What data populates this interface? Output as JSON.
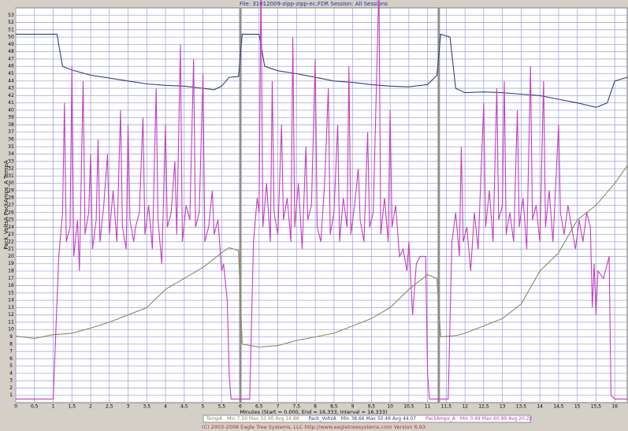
{
  "chart_data": {
    "type": "line",
    "title": "File: 31012009-zipp-zipp-ec.FDR   Session: All Sessions",
    "y_label": "Pack_VoltsA  PackAmps_A  TempA",
    "x_label": "Minutes (Start = 0.000, End = 16.333, Interval = 16.333)",
    "footer": "(C) 2003-2008 Eagle Tree Systems, LLC    http://www.eagletreesystems.com    Version 6.93",
    "xlim": [
      0,
      16.333
    ],
    "ylim": [
      0,
      54
    ],
    "grid": true,
    "xticks": [
      0,
      {
        "value": 0.5,
        "label": "0,5"
      },
      1,
      {
        "value": 1.5,
        "label": "1,5"
      },
      2,
      {
        "value": 2.5,
        "label": "2,5"
      },
      3,
      {
        "value": 3.5,
        "label": "3,5"
      },
      4,
      {
        "value": 4.5,
        "label": "4,5"
      },
      5,
      {
        "value": 5.5,
        "label": "5,5"
      },
      6,
      {
        "value": 6.5,
        "label": "6,5"
      },
      7,
      {
        "value": 7.5,
        "label": "7,5"
      },
      8,
      {
        "value": 8.5,
        "label": "8,5"
      },
      9,
      {
        "value": 9.5,
        "label": "9,5"
      },
      10,
      {
        "value": 10.5,
        "label": "10,5"
      },
      11,
      {
        "value": 11.5,
        "label": "11,5"
      },
      12,
      {
        "value": 12.5,
        "label": "12,5"
      },
      13,
      {
        "value": 13.5,
        "label": "13,5"
      },
      14,
      {
        "value": 14.5,
        "label": "14,5"
      },
      15,
      {
        "value": 15.5,
        "label": "15,5"
      },
      16
    ],
    "yticks": [
      1,
      2,
      3,
      4,
      5,
      6,
      7,
      8,
      9,
      10,
      11,
      12,
      13,
      14,
      15,
      16,
      17,
      18,
      19,
      20,
      21,
      22,
      23,
      24,
      25,
      26,
      27,
      28,
      29,
      30,
      31,
      32,
      33,
      34,
      35,
      36,
      37,
      38,
      39,
      40,
      41,
      42,
      43,
      44,
      45,
      46,
      47,
      48,
      49,
      50,
      51,
      52,
      53
    ],
    "session_breaks": [
      6.0,
      11.3
    ],
    "series": [
      {
        "name": "TempA",
        "stats": "Min 7.50   Max 32.40   Avg 14.88",
        "color": "#8a8a5c",
        "x": [
          0,
          0.5,
          1,
          1.5,
          2,
          2.5,
          3,
          3.5,
          4,
          4.5,
          5,
          5.5,
          5.7,
          5.95,
          6.05,
          6.5,
          7,
          7.5,
          8,
          8.5,
          9,
          9.5,
          10,
          10.5,
          11,
          11.25,
          11.35,
          11.8,
          12,
          12.5,
          13,
          13.5,
          14,
          14.5,
          15,
          15.5,
          16,
          16.333
        ],
        "values": [
          9.1,
          8.8,
          9.3,
          9.5,
          10.2,
          11,
          12,
          13,
          15.5,
          17,
          18.5,
          20.5,
          21.2,
          20.8,
          8,
          7.6,
          7.8,
          8.5,
          9,
          9.5,
          10.5,
          11.5,
          13,
          15.5,
          17.5,
          17,
          9,
          9.2,
          9.5,
          10.5,
          11.5,
          13.5,
          18,
          20.5,
          25,
          27,
          30,
          32.4
        ]
      },
      {
        "name": "Pack_VoltsA",
        "stats": "Min 38.66   Max 50.46   Avg 44.07",
        "color": "#3a3f7a",
        "x": [
          0,
          1.1,
          1.25,
          1.5,
          2,
          2.5,
          3,
          3.5,
          4,
          4.5,
          5,
          5.3,
          5.5,
          5.7,
          5.95,
          6.05,
          6.5,
          6.65,
          7,
          7.5,
          8,
          8.5,
          9,
          9.5,
          10,
          10.5,
          11,
          11.25,
          11.35,
          11.6,
          11.75,
          12,
          12.5,
          13,
          13.5,
          14,
          14.5,
          15,
          15.5,
          15.8,
          16,
          16.333
        ],
        "values": [
          50.4,
          50.4,
          46,
          45.5,
          44.8,
          44.4,
          44,
          43.6,
          43.4,
          43.3,
          43,
          42.8,
          43.3,
          44.5,
          44.6,
          50.4,
          50.4,
          46,
          45.4,
          45,
          44.5,
          44,
          43.8,
          43.5,
          43.3,
          43.2,
          43.5,
          44.8,
          50.4,
          50,
          43,
          42.4,
          42.5,
          42.4,
          42.2,
          42,
          41.5,
          41,
          40.4,
          41,
          44,
          44.5
        ]
      },
      {
        "name": "PackAmps_A",
        "stats": "Min 0.49   Max 60.89   Avg 20.22",
        "color": "#c040c0",
        "x": [
          0,
          1.0,
          1.15,
          1.25,
          1.3,
          1.35,
          1.45,
          1.5,
          1.55,
          1.65,
          1.7,
          1.8,
          1.85,
          1.95,
          2.0,
          2.05,
          2.15,
          2.2,
          2.25,
          2.35,
          2.45,
          2.5,
          2.6,
          2.7,
          2.8,
          2.85,
          2.95,
          3.0,
          3.05,
          3.15,
          3.2,
          3.3,
          3.4,
          3.45,
          3.55,
          3.65,
          3.75,
          3.8,
          3.9,
          4.0,
          4.05,
          4.15,
          4.25,
          4.3,
          4.4,
          4.45,
          4.55,
          4.65,
          4.75,
          4.8,
          4.9,
          5.0,
          5.05,
          5.15,
          5.25,
          5.3,
          5.4,
          5.5,
          5.55,
          5.65,
          5.7,
          5.75,
          5.95,
          6.05,
          6.25,
          6.35,
          6.45,
          6.5,
          6.55,
          6.6,
          6.7,
          6.8,
          6.85,
          6.9,
          7.0,
          7.1,
          7.15,
          7.25,
          7.35,
          7.4,
          7.45,
          7.55,
          7.65,
          7.75,
          7.8,
          7.9,
          8.0,
          8.05,
          8.15,
          8.25,
          8.35,
          8.4,
          8.5,
          8.6,
          8.65,
          8.75,
          8.85,
          8.9,
          8.95,
          9.05,
          9.15,
          9.2,
          9.3,
          9.4,
          9.45,
          9.55,
          9.7,
          9.75,
          9.85,
          9.95,
          10.0,
          10.05,
          10.15,
          10.25,
          10.35,
          10.45,
          10.5,
          10.6,
          10.7,
          10.8,
          10.95,
          11.0,
          11.05,
          11.25,
          11.35,
          11.55,
          11.65,
          11.75,
          11.85,
          11.9,
          11.95,
          12.05,
          12.15,
          12.25,
          12.35,
          12.5,
          12.55,
          12.65,
          12.75,
          12.85,
          12.9,
          13.0,
          13.05,
          13.1,
          13.2,
          13.3,
          13.4,
          13.45,
          13.55,
          13.65,
          13.75,
          13.8,
          13.9,
          14.0,
          14.1,
          14.15,
          14.25,
          14.35,
          14.5,
          14.55,
          14.65,
          14.75,
          14.85,
          14.95,
          15.05,
          15.15,
          15.25,
          15.35,
          15.4,
          15.45,
          15.5,
          15.55,
          15.7,
          15.8,
          15.85,
          15.9,
          16.0,
          16.333
        ],
        "values": [
          0.5,
          0.5,
          20,
          26,
          41,
          22,
          24,
          46,
          20,
          25,
          18,
          44,
          23,
          26,
          34,
          21,
          25,
          36,
          22,
          27,
          34,
          23,
          29,
          22,
          40,
          24,
          21,
          38,
          25,
          22,
          24,
          26,
          39,
          23,
          27,
          21,
          43,
          25,
          19,
          38,
          24,
          26,
          33,
          23,
          49,
          22,
          27,
          25,
          47,
          24,
          26,
          45,
          22,
          24,
          29,
          23,
          25,
          18,
          19,
          14,
          4,
          0.5,
          0.5,
          0.5,
          0.5,
          22,
          28,
          26,
          58,
          24,
          30,
          22,
          44,
          26,
          23,
          38,
          25,
          28,
          22,
          50,
          24,
          30,
          21,
          35,
          25,
          27,
          47,
          24,
          22,
          30,
          43,
          23,
          26,
          38,
          22,
          28,
          24,
          46,
          23,
          27,
          32,
          25,
          22,
          37,
          24,
          26,
          57,
          23,
          28,
          22,
          40,
          24,
          27,
          20,
          21,
          18,
          22,
          12,
          19,
          20,
          20,
          4,
          0.5,
          0.5,
          0.5,
          0.5,
          22,
          26,
          20,
          35,
          22,
          24,
          18,
          26,
          21,
          41,
          24,
          29,
          22,
          43,
          25,
          27,
          44,
          23,
          26,
          22,
          40,
          24,
          28,
          21,
          46,
          25,
          27,
          22,
          44,
          24,
          29,
          22,
          38,
          26,
          23,
          27,
          24,
          21,
          25,
          22,
          26,
          24,
          13,
          19,
          12,
          18,
          17,
          19,
          20,
          1,
          0.5,
          0.5
        ]
      }
    ]
  }
}
